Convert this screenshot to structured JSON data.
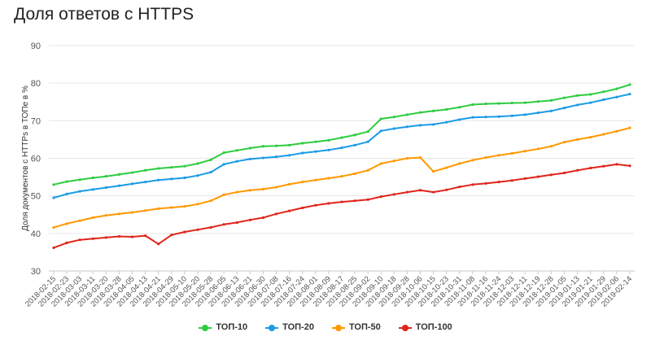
{
  "chart_data": {
    "type": "line",
    "title": "Доля ответов с HTTPS",
    "ylabel": "Доля документов с HTTPs в ТОПе в %",
    "xlabel": "",
    "ylim": [
      30,
      90
    ],
    "yticks": [
      30,
      40,
      50,
      60,
      70,
      80,
      90
    ],
    "grid": true,
    "legend_position": "bottom",
    "categories": [
      "2018-02-15",
      "2018-02-23",
      "2018-03-03",
      "2018-03-11",
      "2018-03-20",
      "2018-03-28",
      "2018-04-05",
      "2018-04-13",
      "2018-04-21",
      "2018-04-29",
      "2018-05-10",
      "2018-05-20",
      "2018-05-28",
      "2018-06-05",
      "2018-06-13",
      "2018-06-21",
      "2018-06-30",
      "2018-07-08",
      "2018-07-16",
      "2018-07-24",
      "2018-08-01",
      "2018-08-09",
      "2018-08-17",
      "2018-08-25",
      "2018-09-02",
      "2018-09-10",
      "2018-09-18",
      "2018-09-28",
      "2018-10-06",
      "2018-10-15",
      "2018-10-23",
      "2018-10-31",
      "2018-11-08",
      "2018-11-16",
      "2018-11-24",
      "2018-12-03",
      "2018-12-11",
      "2018-12-19",
      "2018-12-28",
      "2019-01-05",
      "2019-01-13",
      "2019-01-21",
      "2019-01-29",
      "2019-02-06",
      "2019-02-14"
    ],
    "series": [
      {
        "name": "ТОП-10",
        "color": "#2ecc40",
        "values": [
          53.0,
          53.8,
          54.3,
          54.8,
          55.2,
          55.7,
          56.2,
          56.8,
          57.3,
          57.6,
          57.9,
          58.6,
          59.6,
          61.5,
          62.1,
          62.7,
          63.2,
          63.3,
          63.5,
          64.0,
          64.4,
          64.8,
          65.5,
          66.2,
          67.1,
          70.5,
          71.0,
          71.6,
          72.2,
          72.6,
          73.0,
          73.6,
          74.3,
          74.5,
          74.6,
          74.7,
          74.8,
          75.1,
          75.4,
          76.1,
          76.7,
          77.0,
          77.7,
          78.5,
          79.6
        ]
      },
      {
        "name": "ТОП-20",
        "color": "#1a9be6",
        "values": [
          49.5,
          50.5,
          51.2,
          51.7,
          52.2,
          52.7,
          53.2,
          53.7,
          54.2,
          54.5,
          54.8,
          55.4,
          56.3,
          58.4,
          59.2,
          59.8,
          60.1,
          60.4,
          60.8,
          61.4,
          61.8,
          62.2,
          62.8,
          63.5,
          64.4,
          67.3,
          67.9,
          68.4,
          68.8,
          69.0,
          69.6,
          70.3,
          70.9,
          71.0,
          71.1,
          71.3,
          71.6,
          72.1,
          72.6,
          73.4,
          74.2,
          74.8,
          75.6,
          76.3,
          77.1
        ]
      },
      {
        "name": "ТОП-50",
        "color": "#ff9900",
        "values": [
          41.6,
          42.6,
          43.4,
          44.2,
          44.8,
          45.2,
          45.6,
          46.1,
          46.6,
          46.9,
          47.2,
          47.8,
          48.7,
          50.3,
          51.0,
          51.5,
          51.8,
          52.3,
          53.1,
          53.7,
          54.2,
          54.7,
          55.2,
          55.9,
          56.8,
          58.6,
          59.3,
          60.0,
          60.2,
          56.5,
          57.5,
          58.6,
          59.5,
          60.2,
          60.8,
          61.3,
          61.9,
          62.5,
          63.2,
          64.3,
          65.0,
          65.6,
          66.4,
          67.2,
          68.1
        ]
      },
      {
        "name": "ТОП-100",
        "color": "#e0241b",
        "values": [
          36.2,
          37.5,
          38.3,
          38.6,
          38.9,
          39.2,
          39.1,
          39.4,
          37.2,
          39.6,
          40.4,
          41.0,
          41.6,
          42.4,
          42.9,
          43.6,
          44.2,
          45.2,
          46.0,
          46.8,
          47.5,
          48.0,
          48.4,
          48.7,
          49.0,
          49.8,
          50.4,
          51.0,
          51.5,
          51.0,
          51.6,
          52.4,
          53.0,
          53.3,
          53.7,
          54.1,
          54.6,
          55.1,
          55.6,
          56.1,
          56.8,
          57.4,
          57.9,
          58.4,
          58.0
        ]
      }
    ]
  }
}
